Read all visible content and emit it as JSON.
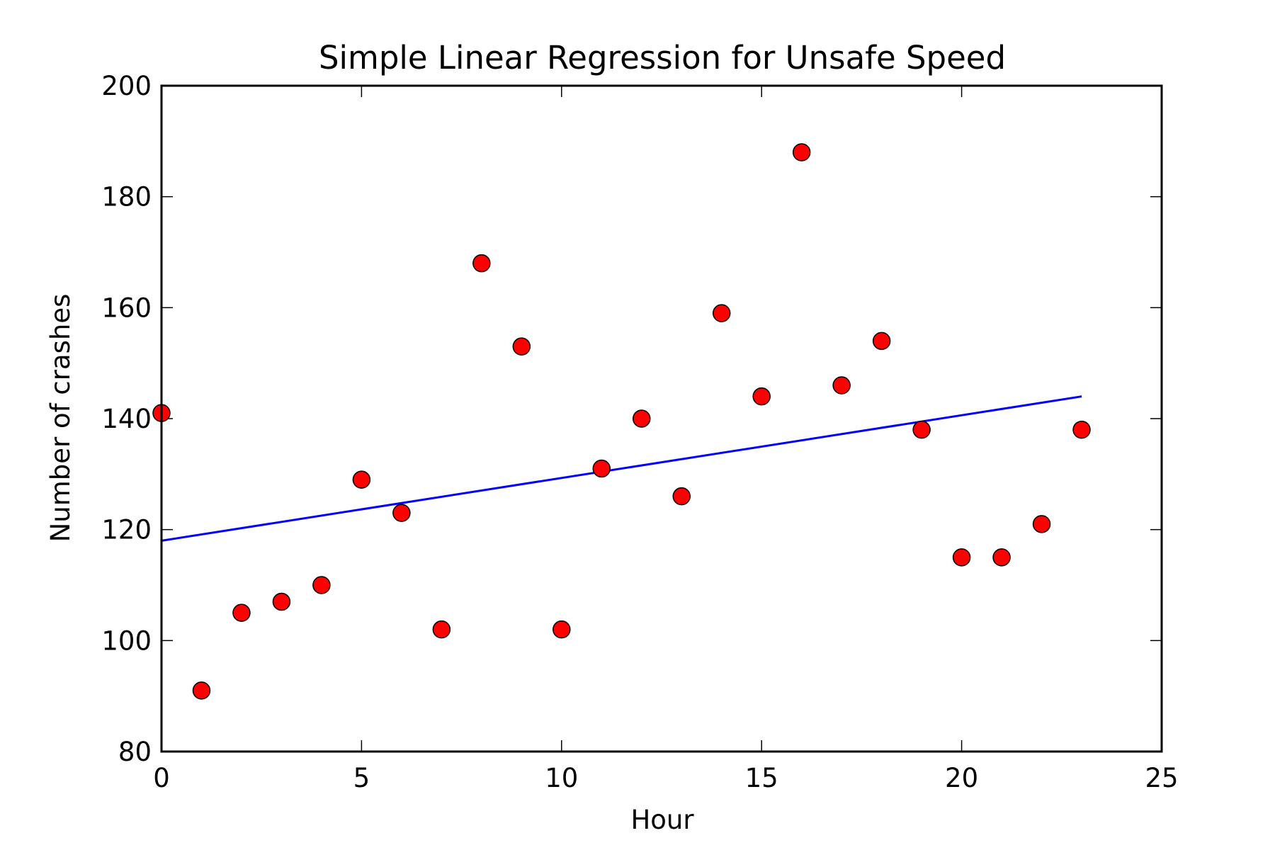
{
  "chart_data": {
    "type": "scatter",
    "title": "Simple Linear Regression for Unsafe Speed",
    "xlabel": "Hour",
    "ylabel": "Number of crashes",
    "xlim": [
      0,
      25
    ],
    "ylim": [
      80,
      200
    ],
    "xticks": [
      0,
      5,
      10,
      15,
      20,
      25
    ],
    "yticks": [
      80,
      100,
      120,
      140,
      160,
      180,
      200
    ],
    "grid": false,
    "series": [
      {
        "type": "scatter",
        "color": "#ff0000",
        "x": [
          0,
          1,
          2,
          3,
          4,
          5,
          6,
          7,
          8,
          9,
          10,
          11,
          12,
          13,
          14,
          15,
          16,
          17,
          18,
          19,
          20,
          21,
          22,
          23
        ],
        "y": [
          141,
          91,
          105,
          107,
          110,
          129,
          123,
          102,
          168,
          153,
          102,
          131,
          140,
          126,
          159,
          144,
          188,
          146,
          154,
          138,
          115,
          115,
          121,
          138
        ]
      },
      {
        "type": "line",
        "color": "#0000ff",
        "x": [
          0,
          23
        ],
        "y": [
          118,
          144
        ]
      }
    ]
  }
}
